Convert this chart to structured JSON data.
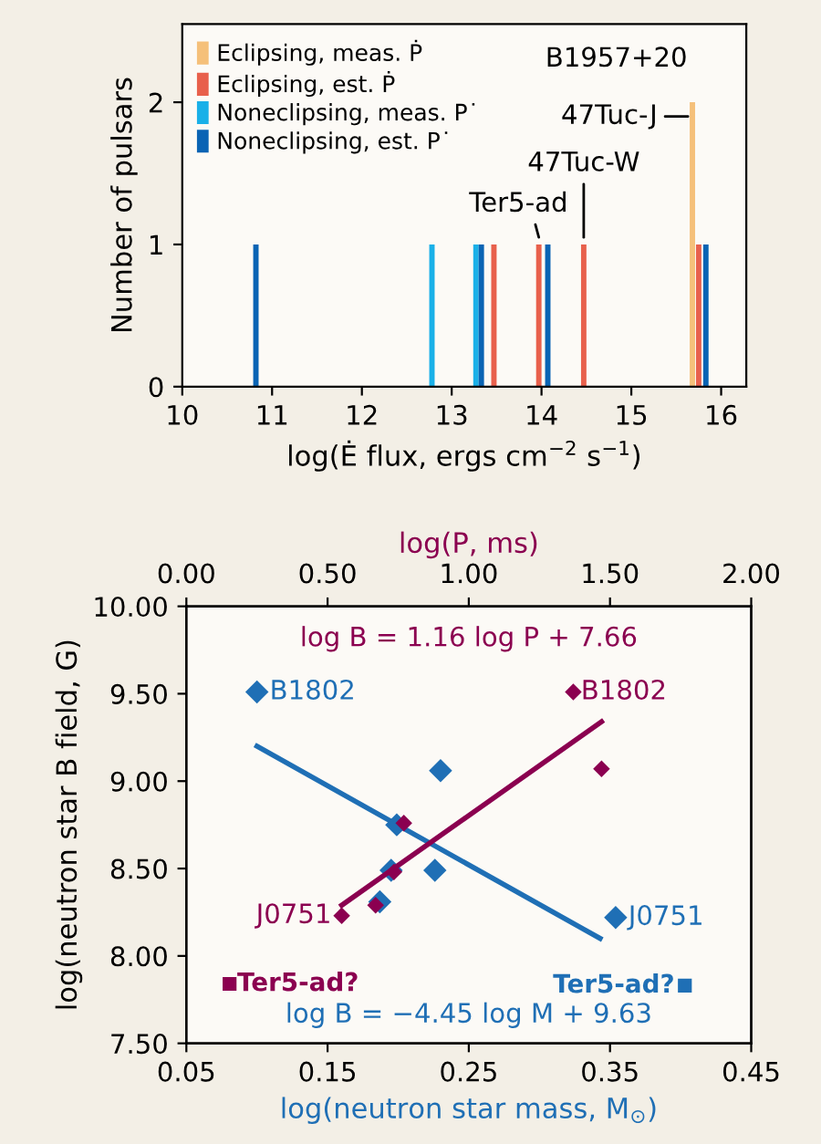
{
  "chart_data": [
    {
      "type": "bar",
      "xlabel": "log(Ė flux, ergs cm$^{−2}$ s$^{−1}$)",
      "ylabel": "Number of pulsars",
      "series": [
        {
          "name": "Eclipsing, meas. Ṗ",
          "color": "#f5c07a",
          "x": [
            15.68
          ],
          "values": [
            2
          ]
        },
        {
          "name": "Eclipsing, est. Ṗ",
          "color": "#e8604c",
          "x": [
            13.47,
            13.97,
            14.47,
            15.75
          ],
          "values": [
            1,
            1,
            1,
            1
          ]
        },
        {
          "name": "Noneclipsing, meas. P˙",
          "color": "#1ab0e8",
          "x": [
            12.78,
            13.27
          ],
          "values": [
            1,
            1
          ]
        },
        {
          "name": "Noneclipsing, est. P˙",
          "color": "#0a64b4",
          "x": [
            10.82,
            13.33,
            14.07,
            15.83
          ],
          "values": [
            1,
            1,
            1,
            1
          ]
        }
      ],
      "annotations": [
        {
          "text": "B1957+20",
          "x": 15.68,
          "y": 2
        },
        {
          "text": "47Tuc-J",
          "x": 15.68,
          "y": 1.95
        },
        {
          "text": "47Tuc-W",
          "x": 14.47,
          "y": 1
        },
        {
          "text": "Ter5-ad",
          "x": 13.97,
          "y": 1
        }
      ],
      "xlim": [
        10,
        16.28
      ],
      "xticks": [
        10,
        11,
        12,
        13,
        14,
        15,
        16
      ],
      "ylim": [
        0,
        2.55
      ],
      "yticks": [
        0,
        1,
        2
      ],
      "legend": "top left",
      "grid": false
    },
    {
      "type": "scatter",
      "xlabel": "log(neutron star mass, M$_{⊙}$)",
      "x2label": "log(P, ms)",
      "ylabel": "log(neutron star B field, G)",
      "series": [
        {
          "color": "#8b0050",
          "axis": "x2",
          "marker": "diamond",
          "x": [
            1.37,
            1.47,
            0.77,
            0.735,
            0.67,
            0.55
          ],
          "values": [
            9.51,
            9.07,
            8.76,
            8.48,
            8.29,
            8.23
          ]
        },
        {
          "color": "#8b0050",
          "axis": "x2",
          "marker": "square",
          "x": [
            0.153
          ],
          "values": [
            7.84
          ]
        },
        {
          "type": "line",
          "color": "#8b0050",
          "axis": "x2",
          "x": [
            0.55,
            1.47
          ],
          "values": [
            8.29,
            9.34
          ]
        },
        {
          "color": "#1f6fb5",
          "marker": "diamond",
          "x": [
            0.1,
            0.23,
            0.199,
            0.195,
            0.226,
            0.187,
            0.354
          ],
          "values": [
            9.51,
            9.06,
            8.75,
            8.49,
            8.49,
            8.31,
            8.22
          ]
        },
        {
          "color": "#1f6fb5",
          "marker": "square",
          "x": [
            0.403
          ],
          "values": [
            7.83
          ]
        },
        {
          "type": "line",
          "color": "#1f6fb5",
          "x": [
            0.1,
            0.343
          ],
          "values": [
            9.2,
            8.1
          ]
        }
      ],
      "annotations": [
        {
          "text": "log B = 1.16 log P + 7.66"
        },
        "B1802",
        "J0751",
        "Ter5-ad?",
        {
          "text": "log B = −4.45 log M + 9.63"
        },
        "B1802",
        "J0751",
        "Ter5-ad?"
      ],
      "xlim": [
        0.05,
        0.45
      ],
      "xticks": [
        0.05,
        0.15,
        0.25,
        0.35,
        0.45
      ],
      "x2lim": [
        0,
        2
      ],
      "x2ticks": [
        {
          "value": 0,
          "label": "0.00"
        },
        {
          "value": 0.5,
          "label": "0.50"
        },
        {
          "value": 1,
          "label": "1.00"
        },
        {
          "value": 1.5,
          "label": "1.50"
        },
        {
          "value": 2,
          "label": "2.00"
        }
      ],
      "ylim": [
        7.5,
        10
      ],
      "yticks": [
        {
          "value": 7.5,
          "label": "7.50"
        },
        {
          "value": 8,
          "label": "8.00"
        },
        {
          "value": 8.5,
          "label": "8.50"
        },
        {
          "value": 9,
          "label": "9.00"
        },
        {
          "value": 9.5,
          "label": "9.50"
        },
        {
          "value": 10,
          "label": "10.00"
        }
      ],
      "grid": false
    }
  ]
}
